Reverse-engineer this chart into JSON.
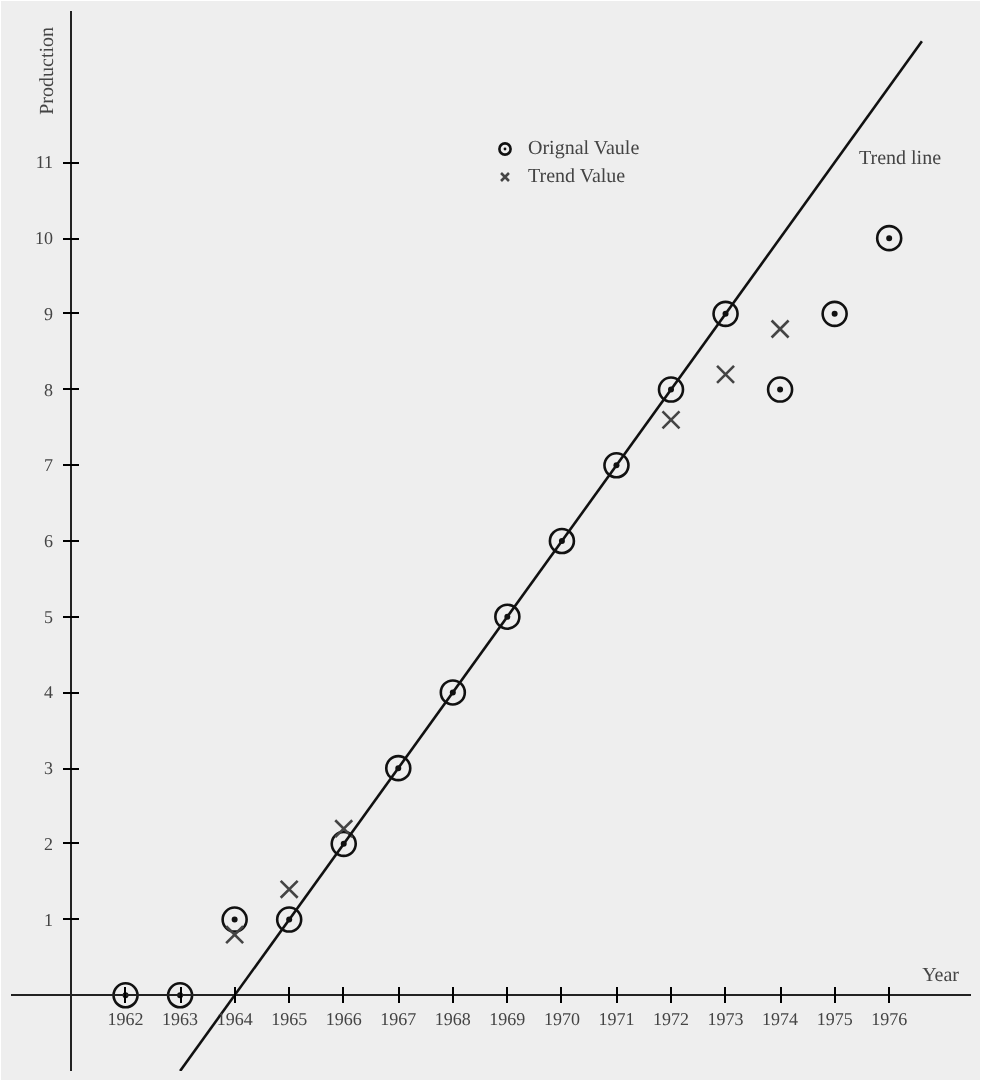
{
  "chart_data": {
    "type": "scatter",
    "xlabel": "Year",
    "ylabel": "Production",
    "xlim": [
      1959.9,
      1977.5
    ],
    "ylim": [
      -1,
      13
    ],
    "xticks": [
      1962,
      1963,
      1964,
      1965,
      1966,
      1967,
      1968,
      1969,
      1970,
      1971,
      1972,
      1973,
      1974,
      1975,
      1976
    ],
    "yticks": [
      1,
      2,
      3,
      4,
      5,
      6,
      7,
      8,
      9,
      10,
      11
    ],
    "grid": false,
    "legend": "top right",
    "series": [
      {
        "name": "Orignal Vaule",
        "marker": "circle",
        "color": "#111111",
        "x": [
          1962,
          1963,
          1964,
          1965,
          1966,
          1967,
          1968,
          1969,
          1970,
          1971,
          1972,
          1973,
          1974,
          1975,
          1976
        ],
        "values": [
          0,
          0,
          1,
          1,
          2,
          3,
          4,
          5,
          6,
          7,
          8,
          9,
          8,
          9,
          10
        ]
      },
      {
        "name": "Trend Value",
        "marker": "cross",
        "color": "#444444",
        "x": [
          1964,
          1965,
          1966,
          1972,
          1973,
          1974
        ],
        "values": [
          0.8,
          1.4,
          2.2,
          7.6,
          8.2,
          8.8
        ]
      },
      {
        "name": "Trend line",
        "type": "line",
        "line_style": "solid",
        "color": "#111111",
        "x": [
          1963,
          1976.6
        ],
        "values": [
          -1,
          12.6
        ]
      }
    ]
  }
}
